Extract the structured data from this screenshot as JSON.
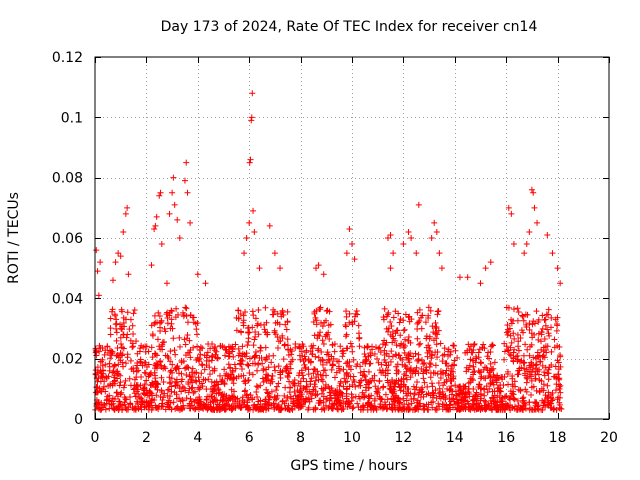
{
  "chart_data": {
    "type": "scatter",
    "title": "Day 173 of 2024, Rate Of TEC Index for receiver cn14",
    "xlabel": "GPS time / hours",
    "ylabel": "ROTI / TECUs",
    "xlim": [
      0,
      20
    ],
    "ylim": [
      0,
      0.12
    ],
    "xticks": [
      0,
      2,
      4,
      6,
      8,
      10,
      12,
      14,
      16,
      18,
      20
    ],
    "xtick_labels": [
      "0",
      "2",
      "4",
      "6",
      "8",
      "10",
      "12",
      "14",
      "16",
      "18",
      "20"
    ],
    "yticks": [
      0,
      0.02,
      0.04,
      0.06,
      0.08,
      0.1,
      0.12
    ],
    "ytick_labels": [
      "0",
      "0.02",
      "0.04",
      "0.06",
      "0.08",
      "0.1",
      "0.12"
    ],
    "grid": true,
    "marker": "+",
    "color": "#ff0000",
    "series": [
      {
        "name": "ROTI",
        "points": [
          [
            0.05,
            0.056
          ],
          [
            0.1,
            0.049
          ],
          [
            0.15,
            0.041
          ],
          [
            0.2,
            0.052
          ],
          [
            0.4,
            0.018
          ],
          [
            0.7,
            0.046
          ],
          [
            0.8,
            0.052
          ],
          [
            0.9,
            0.055
          ],
          [
            1.0,
            0.054
          ],
          [
            1.1,
            0.062
          ],
          [
            1.2,
            0.068
          ],
          [
            1.25,
            0.07
          ],
          [
            1.3,
            0.048
          ],
          [
            1.5,
            0.035
          ],
          [
            2.2,
            0.051
          ],
          [
            2.3,
            0.063
          ],
          [
            2.35,
            0.064
          ],
          [
            2.4,
            0.067
          ],
          [
            2.5,
            0.074
          ],
          [
            2.55,
            0.075
          ],
          [
            2.6,
            0.058
          ],
          [
            2.8,
            0.045
          ],
          [
            2.9,
            0.068
          ],
          [
            3.0,
            0.075
          ],
          [
            3.05,
            0.08
          ],
          [
            3.1,
            0.071
          ],
          [
            3.2,
            0.066
          ],
          [
            3.3,
            0.06
          ],
          [
            3.5,
            0.079
          ],
          [
            3.55,
            0.085
          ],
          [
            3.6,
            0.075
          ],
          [
            3.7,
            0.065
          ],
          [
            4.0,
            0.048
          ],
          [
            4.3,
            0.045
          ],
          [
            5.8,
            0.055
          ],
          [
            5.9,
            0.06
          ],
          [
            6.0,
            0.065
          ],
          [
            6.02,
            0.085
          ],
          [
            6.05,
            0.086
          ],
          [
            6.08,
            0.099
          ],
          [
            6.1,
            0.1
          ],
          [
            6.12,
            0.108
          ],
          [
            6.15,
            0.069
          ],
          [
            6.2,
            0.062
          ],
          [
            6.4,
            0.05
          ],
          [
            6.8,
            0.064
          ],
          [
            7.0,
            0.055
          ],
          [
            7.2,
            0.05
          ],
          [
            8.6,
            0.05
          ],
          [
            8.7,
            0.051
          ],
          [
            8.9,
            0.048
          ],
          [
            9.8,
            0.055
          ],
          [
            9.9,
            0.063
          ],
          [
            10.0,
            0.058
          ],
          [
            10.1,
            0.053
          ],
          [
            11.4,
            0.06
          ],
          [
            11.5,
            0.061
          ],
          [
            11.6,
            0.055
          ],
          [
            11.5,
            0.05
          ],
          [
            12.0,
            0.058
          ],
          [
            12.2,
            0.062
          ],
          [
            12.3,
            0.06
          ],
          [
            12.5,
            0.055
          ],
          [
            12.6,
            0.071
          ],
          [
            13.1,
            0.06
          ],
          [
            13.2,
            0.065
          ],
          [
            13.3,
            0.062
          ],
          [
            13.4,
            0.055
          ],
          [
            13.5,
            0.05
          ],
          [
            14.2,
            0.047
          ],
          [
            14.5,
            0.047
          ],
          [
            15.0,
            0.045
          ],
          [
            15.2,
            0.05
          ],
          [
            15.4,
            0.052
          ],
          [
            16.1,
            0.07
          ],
          [
            16.2,
            0.068
          ],
          [
            16.3,
            0.058
          ],
          [
            16.7,
            0.055
          ],
          [
            16.8,
            0.058
          ],
          [
            16.9,
            0.062
          ],
          [
            17.0,
            0.076
          ],
          [
            17.05,
            0.075
          ],
          [
            17.1,
            0.07
          ],
          [
            17.2,
            0.065
          ],
          [
            17.6,
            0.061
          ],
          [
            17.8,
            0.055
          ],
          [
            18.0,
            0.05
          ],
          [
            18.1,
            0.045
          ]
        ]
      }
    ]
  }
}
